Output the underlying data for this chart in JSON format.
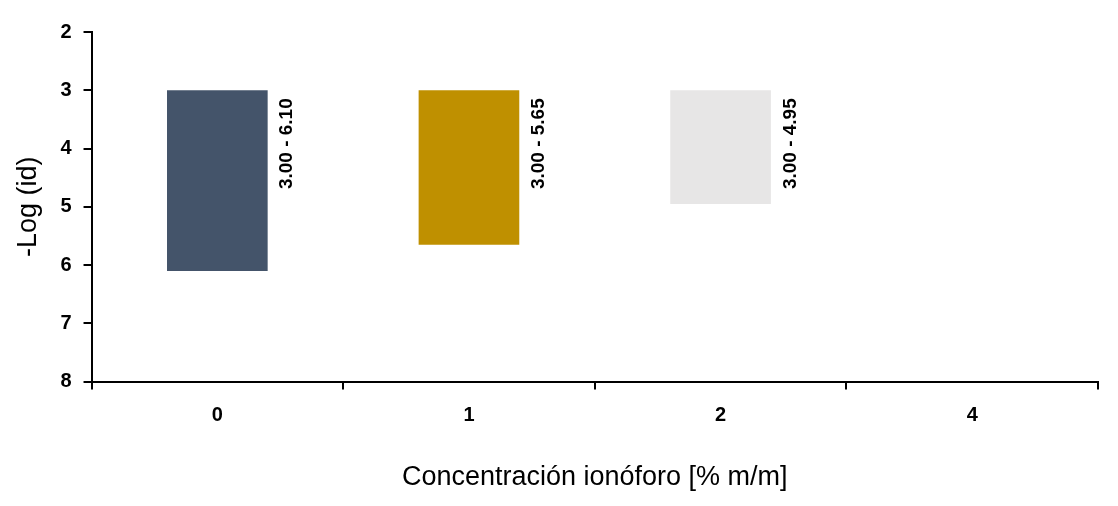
{
  "chart_data": {
    "type": "bar",
    "xlabel": "Concentración ionóforo [% m/m]",
    "ylabel": "-Log (id)",
    "categories": [
      "0",
      "1",
      "2",
      "4"
    ],
    "base": [
      3.0,
      3.0,
      3.0,
      null
    ],
    "values": [
      3.1,
      2.65,
      1.95,
      null
    ],
    "colors": [
      "#44546a",
      "#bf9000",
      "#e7e6e6",
      null
    ],
    "annotations": [
      "3.00 - 6.10",
      "3.00 - 5.65",
      "3.00 - 4.95"
    ],
    "ylim": [
      8,
      2
    ],
    "yticks": [
      2,
      3,
      4,
      5,
      6,
      7,
      8
    ],
    "grid": false,
    "legend": false
  }
}
